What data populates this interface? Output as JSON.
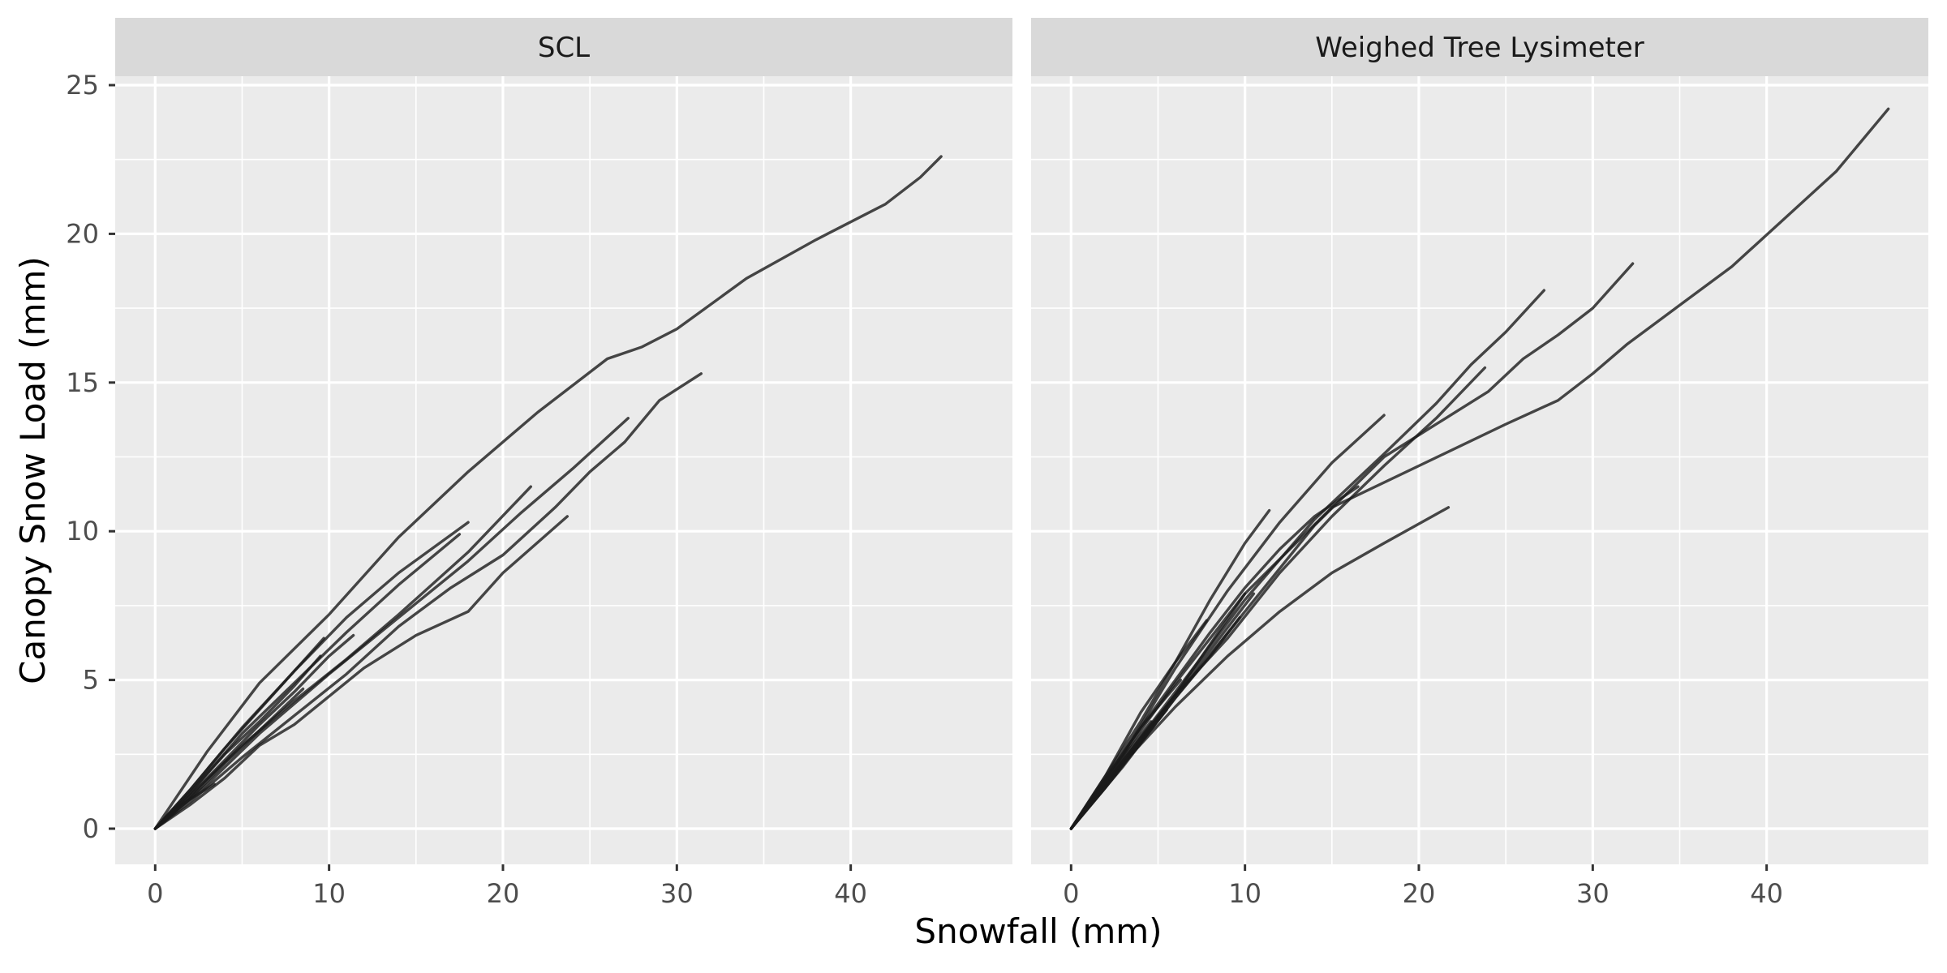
{
  "chart_data": {
    "type": "line",
    "xlabel": "Snowfall (mm)",
    "ylabel": "Canopy Snow Load (mm)",
    "xlim": [
      -2.3,
      49.3
    ],
    "ylim": [
      -1.2,
      25.3
    ],
    "x_ticks": [
      0,
      10,
      20,
      30,
      40
    ],
    "y_ticks": [
      0,
      5,
      10,
      15,
      20,
      25
    ],
    "grid": true,
    "panels": [
      {
        "strip": "SCL",
        "series": [
          {
            "x": [
              0,
              3,
              6,
              10,
              14,
              18,
              22,
              26,
              28,
              30,
              34,
              38,
              42,
              44,
              45.2
            ],
            "y": [
              0,
              2.6,
              4.9,
              7.2,
              9.8,
              12.0,
              14.0,
              15.8,
              16.2,
              16.8,
              18.5,
              19.8,
              21.0,
              21.9,
              22.6
            ]
          },
          {
            "x": [
              0,
              2,
              5,
              8,
              11,
              14,
              17,
              20,
              23,
              25,
              27,
              29,
              31.4
            ],
            "y": [
              0,
              0.9,
              2.4,
              3.8,
              5.2,
              6.8,
              8.1,
              9.2,
              10.8,
              12.0,
              13.0,
              14.4,
              15.3
            ]
          },
          {
            "x": [
              0,
              3,
              6,
              10,
              14,
              18,
              21,
              24,
              27.2
            ],
            "y": [
              0,
              1.5,
              3.2,
              5.2,
              7.1,
              9.0,
              10.6,
              12.1,
              13.8
            ]
          },
          {
            "x": [
              0,
              2,
              4,
              6,
              8,
              12,
              15,
              18,
              20,
              23.7
            ],
            "y": [
              0,
              0.8,
              1.7,
              2.8,
              3.5,
              5.4,
              6.5,
              7.3,
              8.6,
              10.5
            ]
          },
          {
            "x": [
              0,
              2,
              5,
              8,
              11,
              14,
              18,
              21.6
            ],
            "y": [
              0,
              1.1,
              2.8,
              4.3,
              5.7,
              7.2,
              9.3,
              11.5
            ]
          },
          {
            "x": [
              0,
              2,
              5,
              8,
              11,
              14,
              18.0
            ],
            "y": [
              0,
              1.3,
              3.4,
              5.3,
              7.1,
              8.6,
              10.3
            ]
          },
          {
            "x": [
              0,
              2,
              5,
              8,
              11,
              14,
              17.5
            ],
            "y": [
              0,
              1.2,
              3.2,
              4.9,
              6.6,
              8.2,
              9.9
            ]
          },
          {
            "x": [
              0,
              2,
              4,
              6,
              8,
              10,
              11.4
            ],
            "y": [
              0,
              1.1,
              2.3,
              3.5,
              4.6,
              5.8,
              6.5
            ]
          },
          {
            "x": [
              0,
              2,
              4,
              6,
              8,
              9.7
            ],
            "y": [
              0,
              1.3,
              2.7,
              4.0,
              5.3,
              6.4
            ]
          },
          {
            "x": [
              0,
              2,
              4,
              6,
              8,
              9.5
            ],
            "y": [
              0,
              1.2,
              2.5,
              3.6,
              4.8,
              5.8
            ]
          },
          {
            "x": [
              0,
              2,
              4,
              6,
              8.5
            ],
            "y": [
              0,
              1.0,
              2.2,
              3.3,
              4.7
            ]
          },
          {
            "x": [
              0,
              1.5,
              3.4
            ],
            "y": [
              0,
              0.8,
              1.5
            ]
          }
        ]
      },
      {
        "strip": "Weighed Tree Lysimeter",
        "series": [
          {
            "x": [
              0,
              3,
              6,
              10,
              15,
              20,
              25,
              28,
              30,
              32,
              35,
              38,
              41,
              44,
              47.0
            ],
            "y": [
              0,
              2.2,
              4.5,
              7.9,
              10.8,
              12.2,
              13.6,
              14.4,
              15.3,
              16.3,
              17.6,
              18.9,
              20.5,
              22.1,
              24.2
            ]
          },
          {
            "x": [
              0,
              3,
              6,
              10,
              14,
              18,
              21,
              24,
              26,
              28,
              30,
              32.3
            ],
            "y": [
              0,
              2.1,
              4.4,
              7.3,
              10.2,
              12.5,
              13.6,
              14.7,
              15.8,
              16.6,
              17.5,
              19.0
            ]
          },
          {
            "x": [
              0,
              3,
              6,
              10,
              14,
              18,
              21,
              23,
              25,
              27.2
            ],
            "y": [
              0,
              2.3,
              4.6,
              7.7,
              10.4,
              12.6,
              14.3,
              15.6,
              16.7,
              18.1
            ]
          },
          {
            "x": [
              0,
              3,
              6,
              9,
              12,
              15,
              18.0
            ],
            "y": [
              0,
              2.5,
              5.4,
              8.0,
              10.3,
              12.3,
              13.9
            ]
          },
          {
            "x": [
              0,
              3,
              6,
              9,
              12,
              15,
              18,
              21.7
            ],
            "y": [
              0,
              2.2,
              4.1,
              5.8,
              7.3,
              8.6,
              9.6,
              10.8
            ]
          },
          {
            "x": [
              0,
              3,
              6,
              9,
              12,
              15,
              18,
              21,
              23.8
            ],
            "y": [
              0,
              2.3,
              4.5,
              6.4,
              8.6,
              10.5,
              12.2,
              13.8,
              15.5
            ]
          },
          {
            "x": [
              0,
              2,
              4,
              6,
              8,
              10,
              11.4
            ],
            "y": [
              0,
              1.8,
              3.6,
              5.6,
              7.7,
              9.6,
              10.7
            ]
          },
          {
            "x": [
              0,
              2,
              4,
              6,
              8,
              10,
              12,
              14,
              16.5
            ],
            "y": [
              0,
              1.7,
              3.4,
              5.0,
              6.6,
              8.1,
              9.4,
              10.5,
              11.5
            ]
          },
          {
            "x": [
              0,
              2,
              4,
              6,
              7.8
            ],
            "y": [
              0,
              1.8,
              3.9,
              5.6,
              7.0
            ]
          },
          {
            "x": [
              0,
              2,
              4,
              6,
              8,
              10.0
            ],
            "y": [
              0,
              1.6,
              3.3,
              4.9,
              6.4,
              7.9
            ]
          },
          {
            "x": [
              0,
              2,
              4,
              6,
              8,
              10.5
            ],
            "y": [
              0,
              1.5,
              3.0,
              4.5,
              6.0,
              7.9
            ]
          },
          {
            "x": [
              0,
              2,
              4,
              6,
              8,
              9.7
            ],
            "y": [
              0,
              1.4,
              2.9,
              4.4,
              5.8,
              7.1
            ]
          },
          {
            "x": [
              0,
              2,
              4,
              6.3
            ],
            "y": [
              0,
              1.7,
              3.4,
              5.0
            ]
          },
          {
            "x": [
              0,
              2,
              4,
              5.5
            ],
            "y": [
              0,
              1.4,
              2.9,
              4.0
            ]
          },
          {
            "x": [
              0,
              1.5,
              3.0,
              4.6
            ],
            "y": [
              0,
              1.2,
              2.4,
              3.6
            ]
          }
        ]
      }
    ]
  }
}
